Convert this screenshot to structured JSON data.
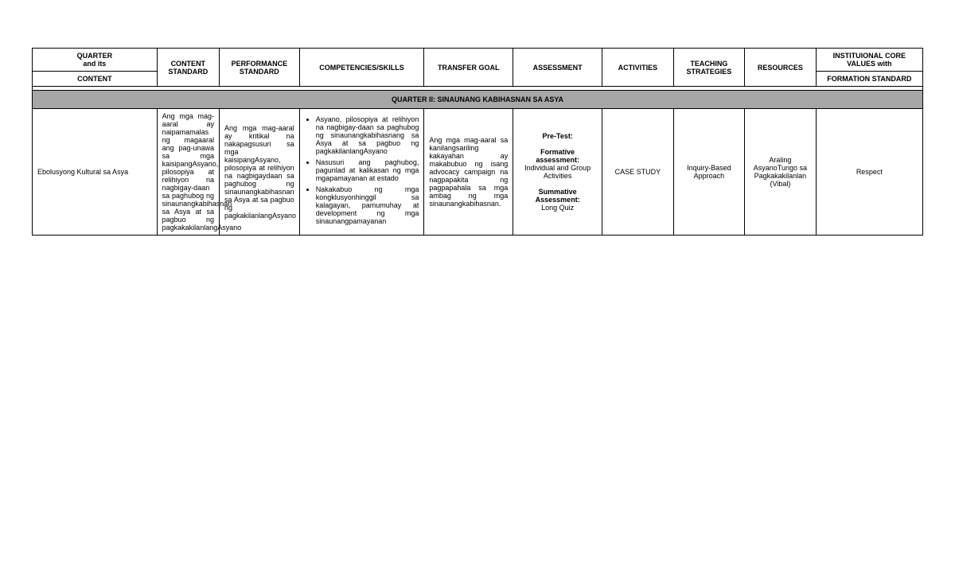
{
  "header": {
    "quarter_label": "QUARTER\nand its",
    "content_label": "CONTENT",
    "content_standard": "CONTENT STANDARD",
    "performance_standard": "PERFORMANCE STANDARD",
    "competencies": "COMPETENCIES/SKILLS",
    "transfer_goal": "TRANSFER GOAL",
    "assessment": "ASSESSMENT",
    "activities": "ACTIVITIES",
    "teaching_strategies": "TEACHING STRATEGIES",
    "resources": "RESOURCES",
    "core_values_top": "INSTITUIONAL CORE VALUES with",
    "core_values_bottom": "FORMATION STANDARD"
  },
  "section_title": "QUARTER II: SINAUNANG KABIHASNAN SA ASYA",
  "row": {
    "content": "Ebolusyong Kultural sa Asya",
    "content_standard": "Ang mga mag-aaral ay naipamamalas ng magaaral ang pag-unawa sa mga kaisipangAsyano, pilosopiya at relihiyon na nagbigay-daan sa paghubog ng sinaunangkabihasnan sa Asya at sa pagbuo ng pagkakakilanlangAsyano",
    "performance_standard": "Ang mga mag-aaral ay kritikal na nakapagsusuri sa mga kaisipangAsyano, pilosopiya at relihiyon na nagbigaydaan sa paghubog ng sinaunangkabihasnan sa Asya at sa pagbuo ng pagkakilanlangAsyano",
    "competencies": {
      "item1": "Asyano, pilosopiya at relihiyon na nagbigay-daan sa paghubog ng sinaunangkabihasnang sa Asya at sa pagbuo ng pagkakilanlangAsyano",
      "item2": "Nasusuri ang paghubog, pagunlad at kalikasan ng mga mgapamayanan at estado",
      "item3": "Nakakabuo ng mga kongklusyonhinggil sa kalagayan, pamumuhay at development ng mga sinaunangpamayanan"
    },
    "transfer_goal": "Ang mga mag-aaral sa kanilangsariling kakayahan ay makabubuo ng isang advocacy campaign na nagpapakita ng pagpapahala sa mga ambag ng mga sinaunangkabihasnan.",
    "assessment": {
      "pretest_label": "Pre-Test:",
      "formative_label": "Formative assessment:",
      "formative_text": "Individual and Group Activities",
      "summative_label": "Summative Assessment:",
      "summative_text": "Long Quiz"
    },
    "activities": "CASE STUDY",
    "teaching_strategies": "Inquiry-Based Approach",
    "resources": "Araling AsyanoTungo sa Pagkakakilanlan (Vibal)",
    "core_values": "Respect"
  }
}
